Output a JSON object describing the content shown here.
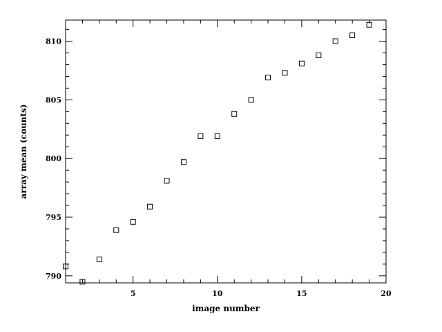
{
  "chart_data": {
    "type": "scatter",
    "title": "",
    "xlabel": "image number",
    "ylabel": "array mean (counts)",
    "xlim": [
      1,
      20
    ],
    "ylim": [
      789.4,
      811.8
    ],
    "grid": false,
    "marker": "open-square",
    "x_ticks": [
      5,
      10,
      15,
      20
    ],
    "x_tick_labels": [
      "5",
      "10",
      "15",
      "20"
    ],
    "y_ticks": [
      790,
      795,
      800,
      805,
      810
    ],
    "y_tick_labels": [
      "790",
      "795",
      "800",
      "805",
      "810"
    ],
    "x": [
      1,
      2,
      3,
      4,
      5,
      6,
      7,
      8,
      9,
      10,
      11,
      12,
      13,
      14,
      15,
      16,
      17,
      18,
      19
    ],
    "y": [
      790.8,
      789.5,
      791.4,
      793.9,
      794.6,
      795.9,
      798.1,
      799.7,
      801.9,
      801.9,
      803.8,
      805.0,
      806.9,
      807.3,
      808.1,
      808.8,
      810.0,
      810.5,
      811.4
    ]
  }
}
